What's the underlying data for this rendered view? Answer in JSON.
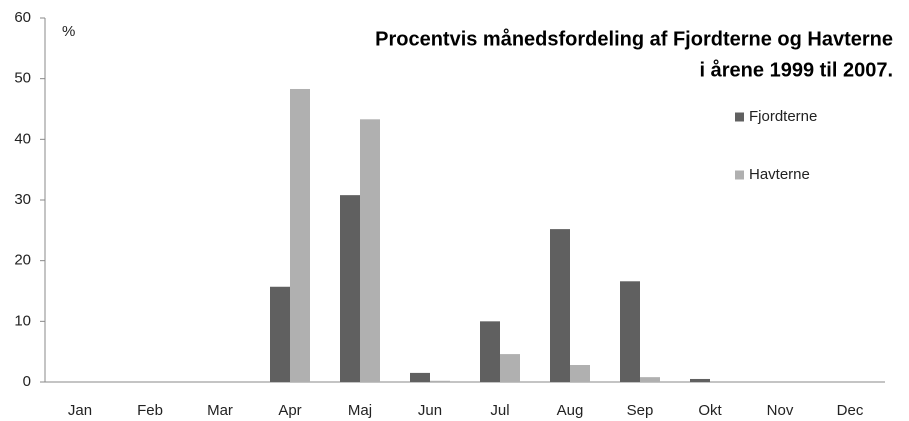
{
  "chart_data": {
    "type": "bar",
    "title": [
      "Procentvis månedsfordeling af Fjordterne og Havterne",
      "i årene 1999 til 2007."
    ],
    "y_label": "%",
    "categories": [
      "Jan",
      "Feb",
      "Mar",
      "Apr",
      "Maj",
      "Jun",
      "Jul",
      "Aug",
      "Sep",
      "Okt",
      "Nov",
      "Dec"
    ],
    "series": [
      {
        "name": "Fjordterne",
        "color": "#606060",
        "values": [
          0,
          0,
          0,
          15.7,
          30.8,
          1.5,
          10,
          25.2,
          16.6,
          0.5,
          0,
          0
        ]
      },
      {
        "name": "Havterne",
        "color": "#b0b0b0",
        "values": [
          0,
          0,
          0,
          48.3,
          43.3,
          0.2,
          4.6,
          2.8,
          0.8,
          0,
          0,
          0
        ]
      }
    ],
    "ylim": [
      0,
      60
    ],
    "yticks": [
      0,
      10,
      20,
      30,
      40,
      50,
      60
    ],
    "grid": false,
    "legend": "right"
  }
}
